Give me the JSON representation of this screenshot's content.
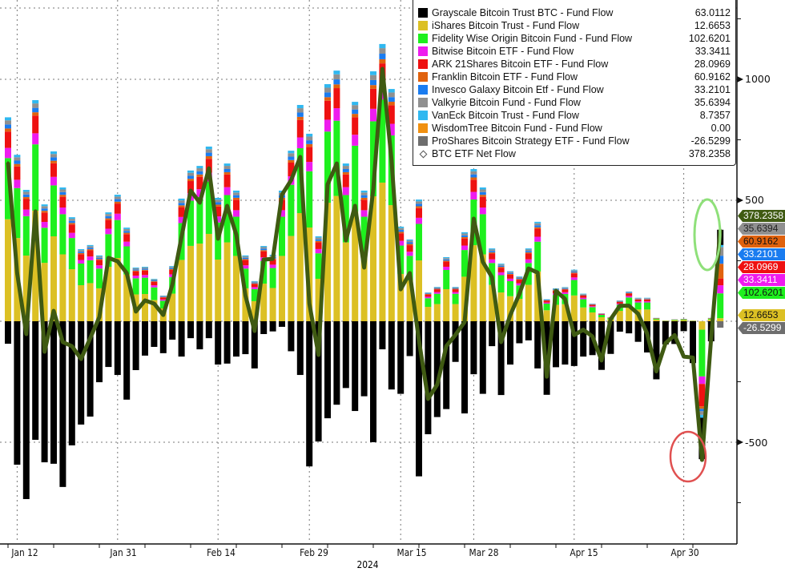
{
  "chart_data": {
    "type": "bar",
    "subtype": "stacked bar with line overlay",
    "title": "",
    "xlabel": "2024",
    "ylabel": "",
    "ylim": [
      -900,
      1300
    ],
    "y_ticks": [
      "1000",
      "500",
      "-500"
    ],
    "y_tick_values": [
      1000,
      500,
      -500
    ],
    "x_tick_labels": [
      "Jan 12",
      "Jan 31",
      "Feb 14",
      "Feb 29",
      "Mar 15",
      "Mar 28",
      "Apr 15",
      "Apr 30"
    ],
    "x_tick_bar_index": [
      1,
      12,
      23,
      33,
      43,
      51,
      62,
      74
    ],
    "year_label": "2024",
    "grid": true,
    "legend_position": "top-right",
    "legend": [
      {
        "label": "Grayscale Bitcoin Trust BTC - Fund Flow",
        "value": "63.0112",
        "color": "#000000",
        "key": "gbtc"
      },
      {
        "label": "iShares Bitcoin Trust - Fund Flow",
        "value": "12.6653",
        "color": "#dcc024",
        "key": "ibit"
      },
      {
        "label": "Fidelity Wise Origin Bitcoin Fund - Fund Flow",
        "value": "102.6201",
        "color": "#1ef01e",
        "key": "fbtc"
      },
      {
        "label": "Bitwise Bitcoin ETF - Fund Flow",
        "value": "33.3411",
        "color": "#ee1cee",
        "key": "bitb"
      },
      {
        "label": "ARK 21Shares Bitcoin ETF - Fund Flow",
        "value": "28.0969",
        "color": "#ee1111",
        "key": "arkb"
      },
      {
        "label": "Franklin Bitcoin ETF - Fund Flow",
        "value": "60.9162",
        "color": "#e0620e",
        "key": "ezbc"
      },
      {
        "label": "Invesco Galaxy Bitcoin Etf - Fund Flow",
        "value": "33.2101",
        "color": "#1a7cf0",
        "key": "btco"
      },
      {
        "label": "Valkyrie Bitcoin Fund - Fund Flow",
        "value": "35.6394",
        "color": "#909090",
        "key": "brrr"
      },
      {
        "label": "VanEck Bitcoin Trust - Fund Flow",
        "value": "8.7357",
        "color": "#30b8f0",
        "key": "hodl"
      },
      {
        "label": "WisdomTree Bitcoin Fund - Fund Flow",
        "value": "0.00",
        "color": "#f09010",
        "key": "btcw"
      },
      {
        "label": "ProShares Bitcoin Strategy ETF - Fund Flow",
        "value": "-26.5299",
        "color": "#6e6e6e",
        "key": "bito"
      },
      {
        "label": "BTC ETF Net Flow",
        "value": "378.2358",
        "color": "#3f5a12",
        "key": "net"
      }
    ],
    "inflow_share": {
      "ibit": 0.5,
      "fbtc": 0.3,
      "bitb": 0.05,
      "arkb": 0.08,
      "ezbc": 0.015,
      "btco": 0.02,
      "brrr": 0.02,
      "hodl": 0.015
    },
    "gbtc": [
      -93,
      -593,
      -735,
      -490,
      -583,
      -589,
      -685,
      -513,
      -427,
      -394,
      -252,
      -189,
      -222,
      -324,
      -202,
      -142,
      -106,
      -132,
      -76,
      -146,
      -70,
      -116,
      -70,
      -179,
      -175,
      -146,
      -136,
      -195,
      -53,
      -42,
      -23,
      -124,
      -222,
      -600,
      -497,
      -401,
      -345,
      -276,
      -371,
      -310,
      -500,
      -116,
      -282,
      -300,
      -144,
      -641,
      -467,
      -396,
      -363,
      -168,
      -381,
      -219,
      -300,
      -103,
      -305,
      -179,
      -91,
      -79,
      -195,
      -304,
      -190,
      -179,
      -185,
      -146,
      -140,
      -201,
      -135,
      -43,
      -50,
      -85,
      -129,
      -240,
      -96,
      -94,
      -41,
      -173,
      -171,
      -83,
      63.0112
    ],
    "inflow_total": [
      843,
      688,
      543,
      914,
      483,
      702,
      553,
      430,
      298,
      315,
      272,
      450,
      523,
      387,
      222,
      225,
      175,
      106,
      228,
      507,
      623,
      642,
      722,
      510,
      652,
      540,
      272,
      166,
      311,
      275,
      540,
      705,
      894,
      775,
      351,
      980,
      1036,
      652,
      907,
      540,
      1033,
      1146,
      960,
      391,
      338,
      503,
      119,
      142,
      265,
      142,
      368,
      629,
      553,
      301,
      238,
      207,
      185,
      301,
      411,
      91,
      136,
      141,
      213,
      114,
      73,
      33,
      17,
      86,
      123,
      97,
      97,
      14,
      3,
      8,
      10,
      3,
      0,
      14,
      0
    ],
    "net_flow": [
      656,
      199,
      -53,
      454,
      -126,
      43,
      -86,
      -103,
      -156,
      -70,
      17,
      262,
      248,
      199,
      40,
      86,
      73,
      26,
      152,
      348,
      540,
      490,
      632,
      341,
      477,
      358,
      106,
      -40,
      255,
      258,
      523,
      583,
      679,
      73,
      -139,
      566,
      652,
      334,
      477,
      222,
      546,
      1043,
      666,
      132,
      199,
      -79,
      -321,
      -262,
      -103,
      -56,
      -3,
      424,
      245,
      182,
      -86,
      25,
      113,
      218,
      201,
      -229,
      126,
      92,
      -57,
      -35,
      -63,
      -162,
      9,
      64,
      64,
      31,
      -52,
      -207,
      -91,
      -57,
      -146,
      -150,
      -573,
      -69,
      378.2358
    ],
    "overrides": {
      "76": {
        "ibit": -35,
        "fbtc": -193,
        "bitb": -31,
        "arkb": -93,
        "ezbc": -10,
        "btco": -10,
        "brrr": -15,
        "hodl": -12
      },
      "78": {
        "ibit": 12.6653,
        "fbtc": 102.6201,
        "bitb": 33.3411,
        "arkb": 28.0969,
        "ezbc": 60.9162,
        "btco": 33.2101,
        "brrr": 35.6394,
        "hodl": 8.7357,
        "btcw": 0,
        "bito": -26.5299
      }
    }
  }
}
